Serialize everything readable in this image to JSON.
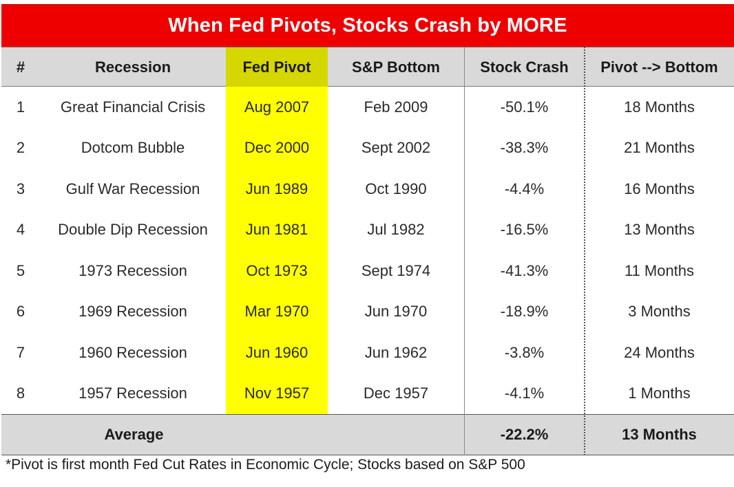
{
  "chart_data": {
    "type": "table",
    "title": "When Fed Pivots, Stocks Crash by MORE",
    "columns": [
      "#",
      "Recession",
      "Fed Pivot",
      "S&P Bottom",
      "Stock Crash",
      "Pivot --> Bottom"
    ],
    "rows": [
      {
        "num": "1",
        "recession": "Great Financial Crisis",
        "fed_pivot": "Aug 2007",
        "sp_bottom": "Feb 2009",
        "stock_crash": "-50.1%",
        "pivot_to_bottom": "18 Months"
      },
      {
        "num": "2",
        "recession": "Dotcom Bubble",
        "fed_pivot": "Dec 2000",
        "sp_bottom": "Sept 2002",
        "stock_crash": "-38.3%",
        "pivot_to_bottom": "21 Months"
      },
      {
        "num": "3",
        "recession": "Gulf War Recession",
        "fed_pivot": "Jun 1989",
        "sp_bottom": "Oct 1990",
        "stock_crash": "-4.4%",
        "pivot_to_bottom": "16 Months"
      },
      {
        "num": "4",
        "recession": "Double Dip Recession",
        "fed_pivot": "Jun 1981",
        "sp_bottom": "Jul 1982",
        "stock_crash": "-16.5%",
        "pivot_to_bottom": "13 Months"
      },
      {
        "num": "5",
        "recession": "1973 Recession",
        "fed_pivot": "Oct 1973",
        "sp_bottom": "Sept 1974",
        "stock_crash": "-41.3%",
        "pivot_to_bottom": "11 Months"
      },
      {
        "num": "6",
        "recession": "1969 Recession",
        "fed_pivot": "Mar 1970",
        "sp_bottom": "Jun 1970",
        "stock_crash": "-18.9%",
        "pivot_to_bottom": "3 Months"
      },
      {
        "num": "7",
        "recession": "1960 Recession",
        "fed_pivot": "Jun 1960",
        "sp_bottom": "Jun 1962",
        "stock_crash": "-3.8%",
        "pivot_to_bottom": "24 Months"
      },
      {
        "num": "8",
        "recession": "1957 Recession",
        "fed_pivot": "Nov 1957",
        "sp_bottom": "Dec 1957",
        "stock_crash": "-4.1%",
        "pivot_to_bottom": "1 Months"
      }
    ],
    "average": {
      "label": "Average",
      "stock_crash": "-22.2%",
      "pivot_to_bottom": "13 Months"
    },
    "footnote": "*Pivot is first month Fed Cut Rates in Economic Cycle; Stocks based on S&P 500"
  },
  "colors": {
    "title_bg": "#ee0000",
    "highlight": "#ffff00",
    "header_bg": "#d9d9d9"
  }
}
